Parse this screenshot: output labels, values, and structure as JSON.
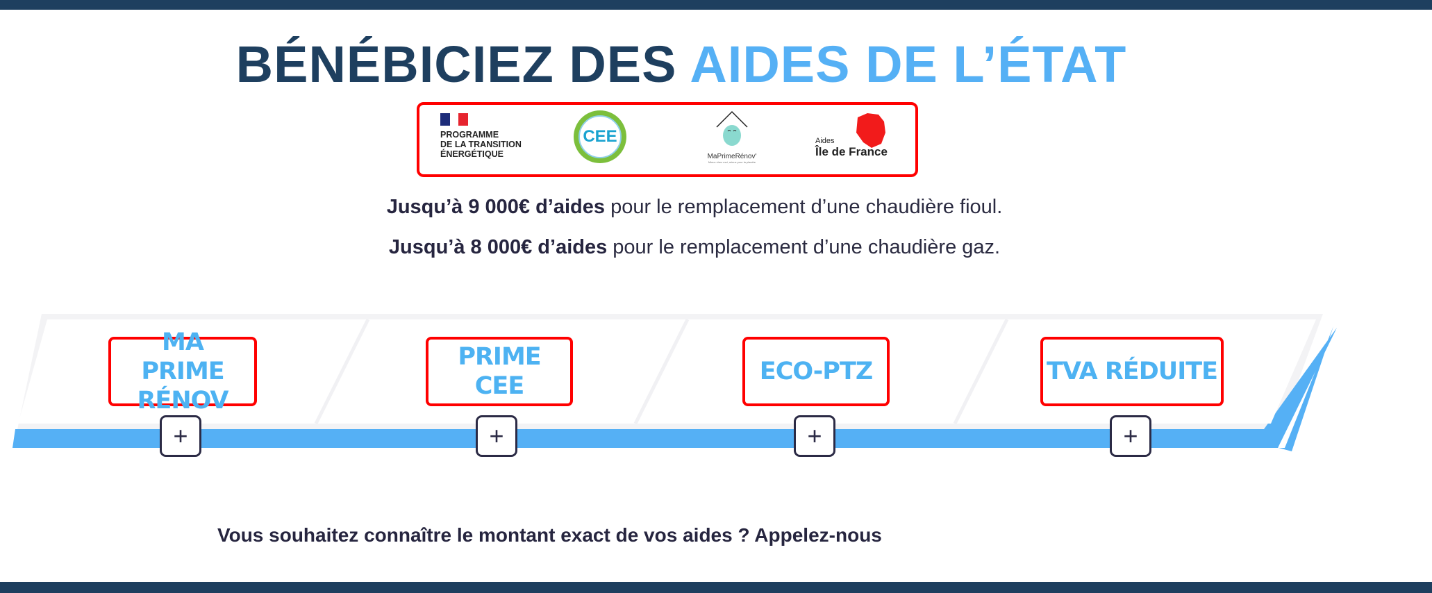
{
  "header": {
    "title_dark": "BÉNÉBICIEZ DES",
    "title_light": "AIDES DE L’ÉTAT"
  },
  "logos": {
    "pte": {
      "lines": [
        "PROGRAMME",
        "DE LA TRANSITION",
        "ÉNERGÉTIQUE"
      ]
    },
    "cee": "CEE",
    "mpr": {
      "name": "MaPrimeRénov'",
      "tagline": "Mieux chez moi, mieux pour la planète"
    },
    "idf": {
      "small": "Aides",
      "big": "Île de France"
    }
  },
  "intro": [
    {
      "bold": "Jusqu’à 9 000€ d’aides",
      "rest": " pour le remplacement d’une chaudière fioul."
    },
    {
      "bold": "Jusqu’à 8 000€ d’aides",
      "rest": " pour le remplacement d’une chaudière gaz."
    }
  ],
  "aides": [
    {
      "label": "MA PRIME RÉNOV",
      "icon": "plus-icon"
    },
    {
      "label": "PRIME CEE",
      "icon": "plus-icon"
    },
    {
      "label": "ECO-PTZ",
      "icon": "plus-icon"
    },
    {
      "label": "TVA RÉDUITE",
      "icon": "plus-icon"
    }
  ],
  "cta": "Vous souhaitez connaître le montant exact de vos aides ? Appelez-nous",
  "colors": {
    "navy": "#1e3f5f",
    "accent": "#55b0f5",
    "highlight_border": "#ff0000"
  }
}
